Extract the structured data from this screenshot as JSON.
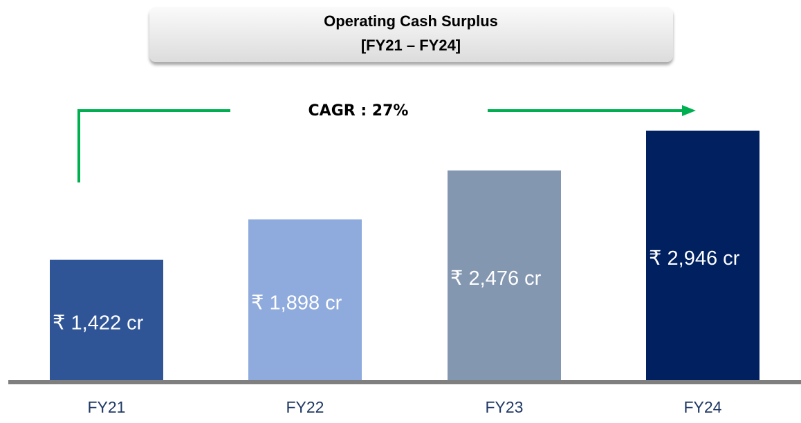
{
  "chart_data": {
    "type": "bar",
    "title": "Operating Cash Surplus",
    "subtitle": "[FY21 – FY24]",
    "annotation": "CAGR : 27%",
    "categories": [
      "FY21",
      "FY22",
      "FY23",
      "FY24"
    ],
    "values": [
      1422,
      1898,
      2476,
      2946
    ],
    "value_labels": [
      "₹ 1,422 cr",
      "₹ 1,898 cr",
      "₹ 2,476 cr",
      "₹ 2,946 cr"
    ],
    "colors": [
      "#2f5597",
      "#8faadc",
      "#8497b0",
      "#002060"
    ]
  }
}
